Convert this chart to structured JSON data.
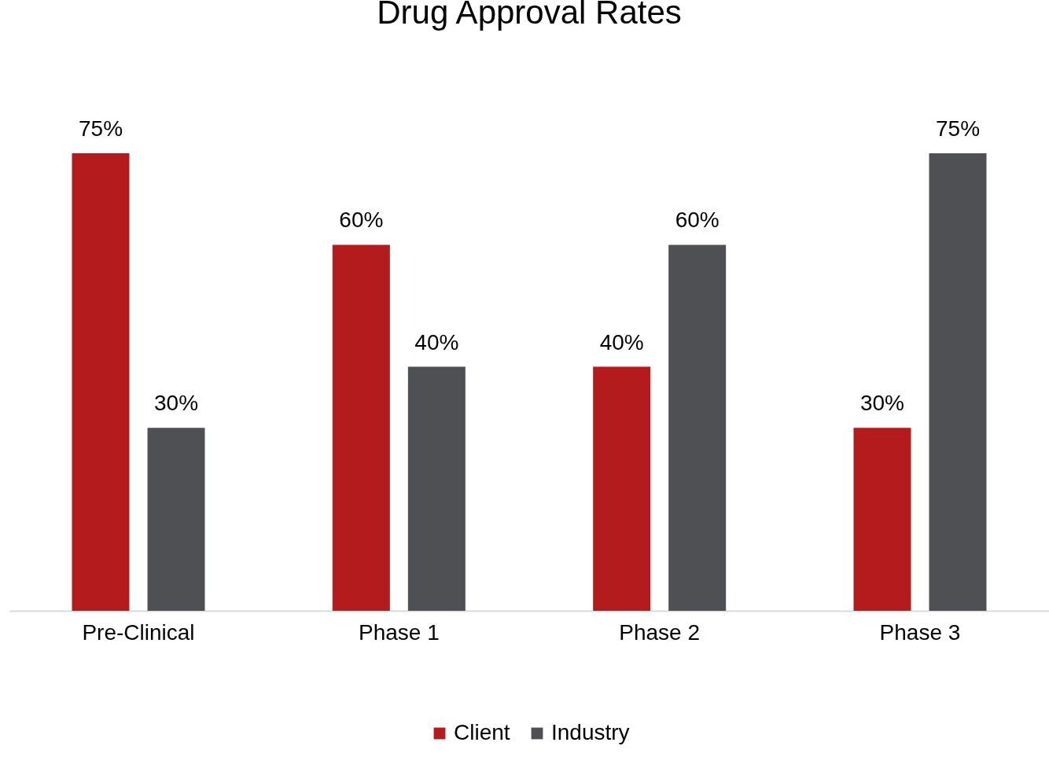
{
  "chart_data": {
    "type": "bar",
    "title": "Drug Approval Rates",
    "categories": [
      "Pre-Clinical",
      "Phase 1",
      "Phase 2",
      "Phase 3"
    ],
    "series": [
      {
        "name": "Client",
        "color": "#b31b1c",
        "values": [
          75,
          60,
          40,
          30
        ],
        "value_labels": [
          "75%",
          "60%",
          "40%",
          "30%"
        ]
      },
      {
        "name": "Industry",
        "color": "#4f5054",
        "values": [
          30,
          40,
          60,
          75
        ],
        "value_labels": [
          "30%",
          "40%",
          "60%",
          "75%"
        ]
      }
    ],
    "grid": false,
    "legend": "bottom"
  }
}
